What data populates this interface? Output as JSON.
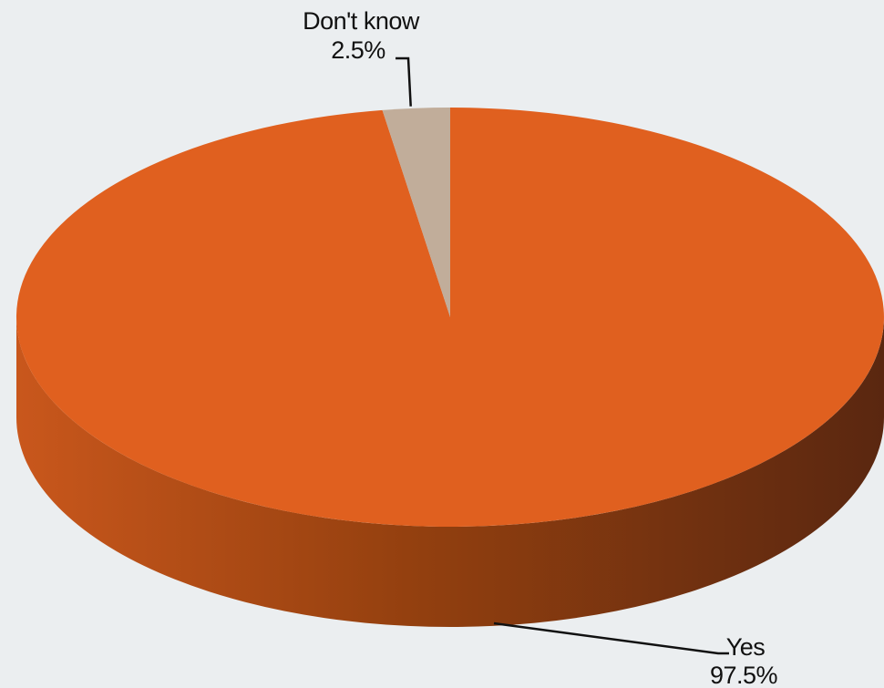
{
  "chart_data": {
    "type": "pie",
    "title": "",
    "slices": [
      {
        "label": "Yes",
        "value": 97.5,
        "display": "97.5%",
        "color": "#e0601f"
      },
      {
        "label": "Don't know",
        "value": 2.5,
        "display": "2.5%",
        "color": "#c1ad9a"
      }
    ],
    "style": "3d",
    "side_colors": [
      "#c9571c",
      "#5a2710"
    ],
    "background": "#ebeef0"
  }
}
